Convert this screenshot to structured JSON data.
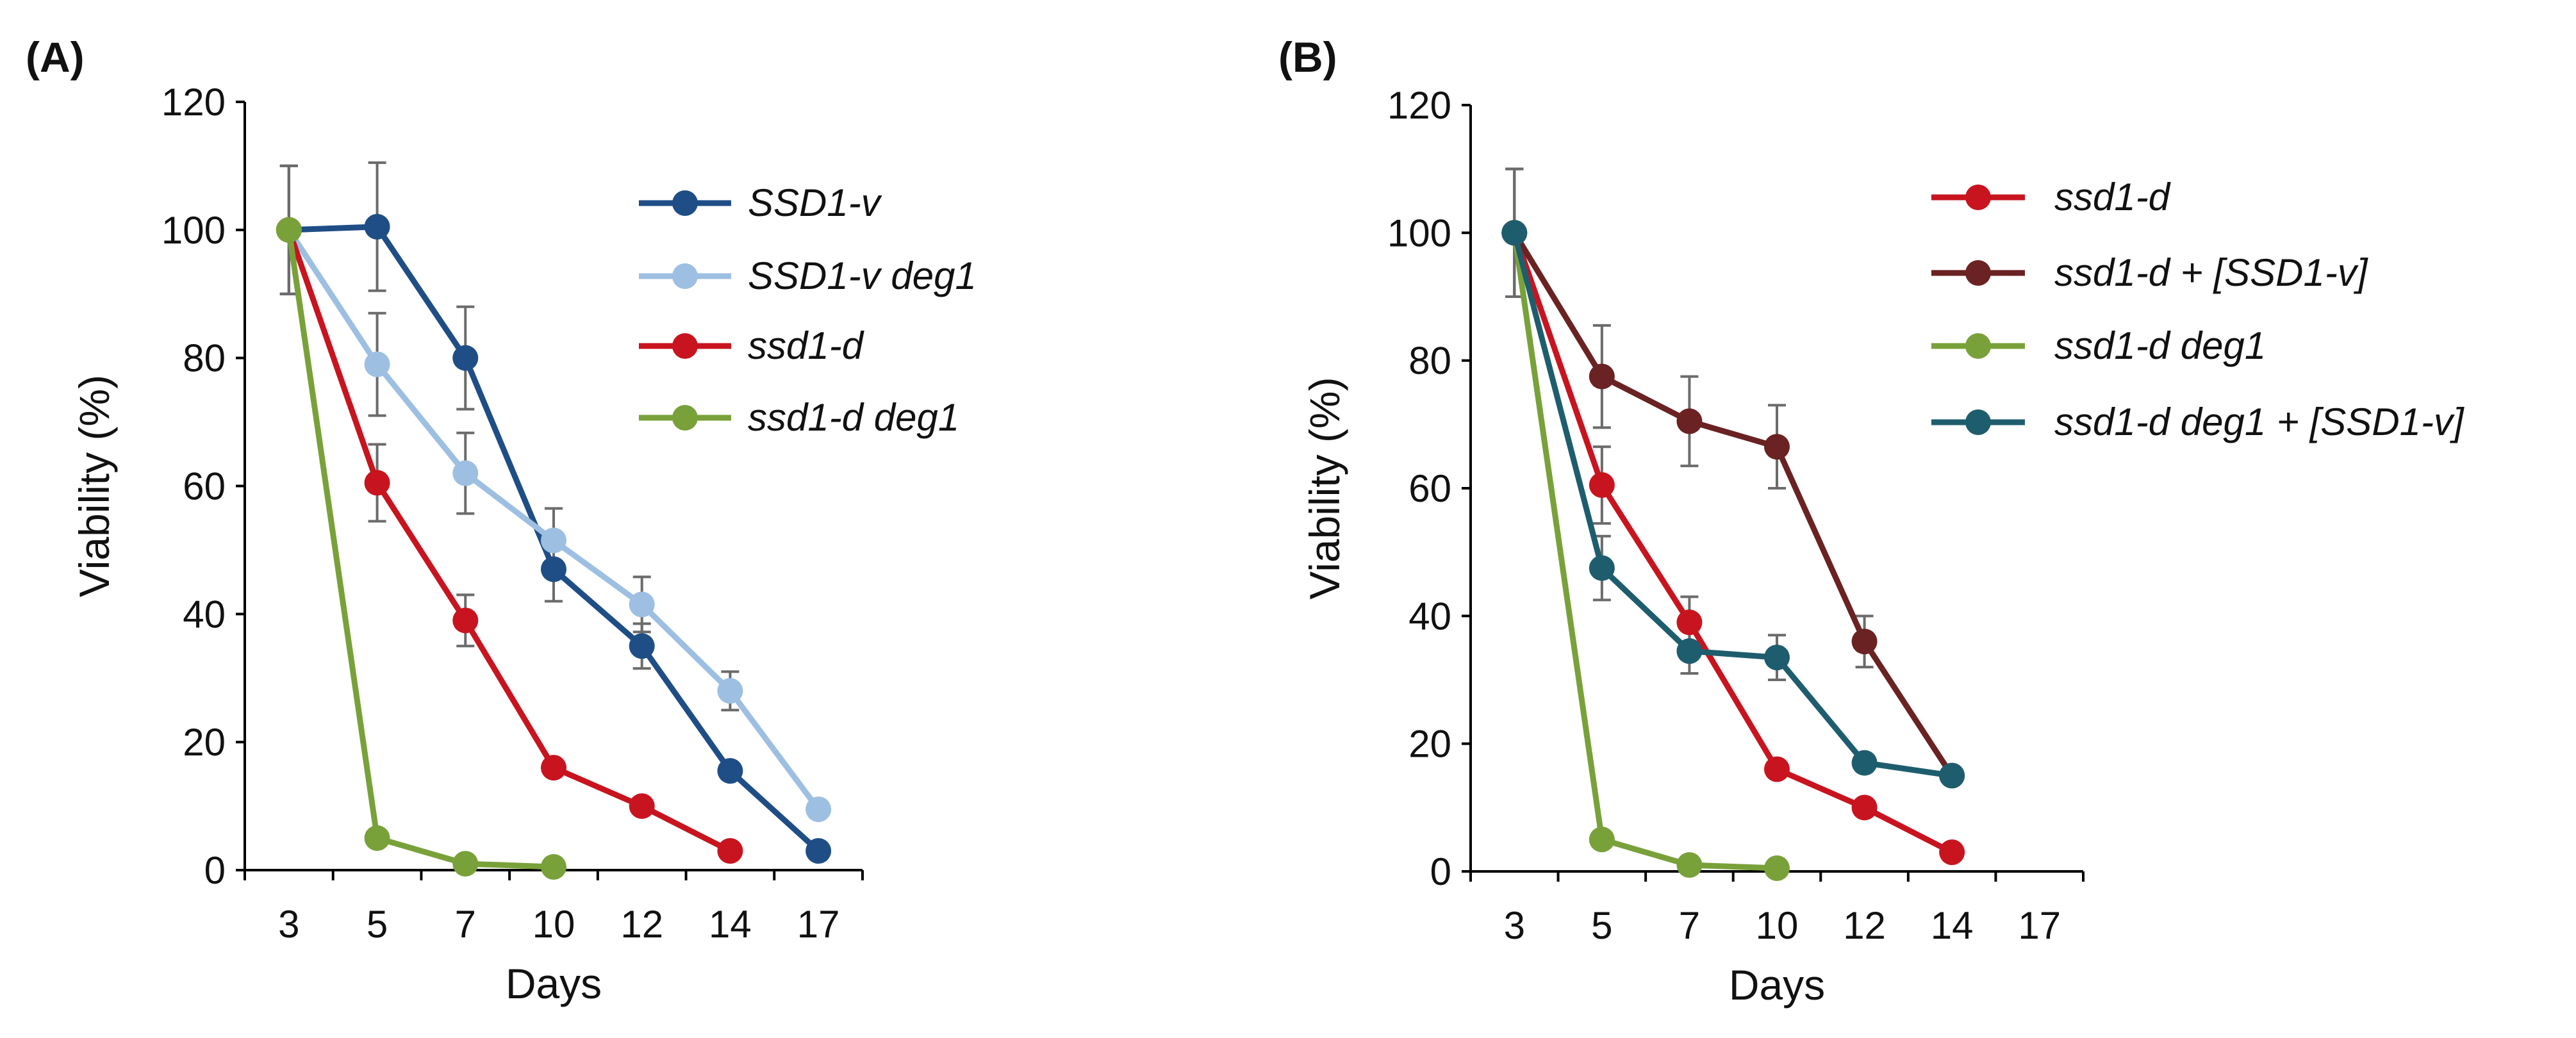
{
  "chart_data": [
    {
      "type": "line",
      "panel_label": "(A)",
      "xlabel": "Days",
      "ylabel": "Viability (%)",
      "categories": [
        "3",
        "5",
        "7",
        "10",
        "12",
        "14",
        "17"
      ],
      "ylim": [
        0,
        120
      ],
      "yticks": [
        "0",
        "20",
        "40",
        "60",
        "80",
        "100",
        "120"
      ],
      "legend_position": "top-right",
      "series": [
        {
          "name": "SSD1-v",
          "color": "#1f4e86",
          "values": [
            100,
            100.5,
            80,
            47,
            35,
            15.5,
            3
          ],
          "errors": [
            10,
            10,
            8,
            5,
            3.5,
            null,
            null
          ]
        },
        {
          "name": "SSD1-v deg1",
          "color": "#9dbfe2",
          "values": [
            100,
            79,
            62,
            51.5,
            41.5,
            28,
            9.5
          ],
          "errors": [
            10,
            8,
            6.3,
            5,
            4.3,
            3,
            null
          ]
        },
        {
          "name": "ssd1-d",
          "color": "#c8141f",
          "values": [
            100,
            60.5,
            39,
            16,
            10,
            3,
            null
          ],
          "errors": [
            10,
            6,
            4,
            null,
            null,
            null,
            null
          ]
        },
        {
          "name": "ssd1-d deg1",
          "color": "#79a13a",
          "values": [
            100,
            5,
            1,
            0.5,
            null,
            null,
            null
          ],
          "errors": [
            10,
            null,
            null,
            null,
            null,
            null,
            null
          ]
        }
      ]
    },
    {
      "type": "line",
      "panel_label": "(B)",
      "xlabel": "Days",
      "ylabel": "Viability (%)",
      "categories": [
        "3",
        "5",
        "7",
        "10",
        "12",
        "14",
        "17"
      ],
      "ylim": [
        0,
        120
      ],
      "yticks": [
        "0",
        "20",
        "40",
        "60",
        "80",
        "100",
        "120"
      ],
      "legend_position": "top-right",
      "series": [
        {
          "name": "ssd1-d",
          "color": "#c8141f",
          "values": [
            100,
            60.5,
            39,
            16,
            10,
            3,
            null
          ],
          "errors": [
            10,
            6,
            4,
            null,
            null,
            null,
            null
          ]
        },
        {
          "name": "ssd1-d + [SSD1-v]",
          "color": "#6a2222",
          "values": [
            100,
            77.5,
            70.5,
            66.5,
            36,
            15,
            null
          ],
          "errors": [
            10,
            8,
            7,
            6.5,
            4,
            null,
            null
          ]
        },
        {
          "name": "ssd1-d deg1",
          "color": "#79a13a",
          "values": [
            100,
            5,
            1,
            0.5,
            null,
            null,
            null
          ],
          "errors": [
            10,
            null,
            null,
            null,
            null,
            null,
            null
          ]
        },
        {
          "name": "ssd1-d deg1 + [SSD1-v]",
          "color": "#1e5d6e",
          "values": [
            100,
            47.5,
            34.5,
            33.5,
            17,
            15,
            null
          ],
          "errors": [
            10,
            5,
            3.5,
            3.5,
            1,
            null,
            null
          ]
        }
      ]
    }
  ]
}
